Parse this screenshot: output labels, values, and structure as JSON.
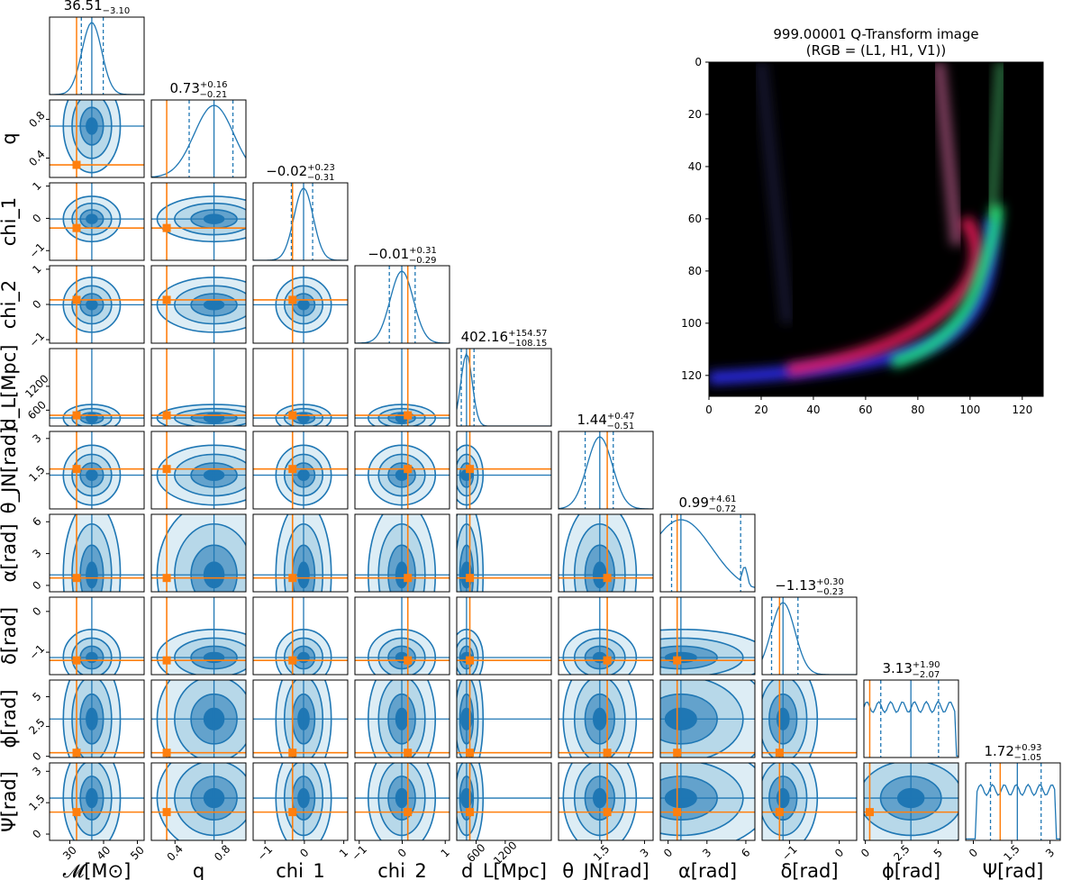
{
  "chart_data": [
    {
      "type": "corner",
      "colors": {
        "posterior": "#1f77b4",
        "injection": "#ff7f0e",
        "fill": "#9ecae1"
      },
      "parameters": [
        {
          "name": "mass",
          "label": "𝓜[M⊙]",
          "range": [
            24,
            52
          ],
          "median": 36.51,
          "plus": null,
          "minus": "3.10",
          "q_lo": 33.41,
          "q_hi": 39.9,
          "injected": 32.0,
          "ticks": [
            30,
            40,
            50
          ],
          "sd": 3.4,
          "hist_y_hidden": true,
          "title": "36.51"
        },
        {
          "name": "q",
          "label": "q",
          "range": [
            0.2,
            1.0
          ],
          "median": 0.73,
          "plus": "0.16",
          "minus": "0.21",
          "q_lo": 0.52,
          "q_hi": 0.89,
          "injected": 0.33,
          "ticks": [
            0.4,
            0.8
          ],
          "title": "0.73"
        },
        {
          "name": "chi_1",
          "label": "chi_1",
          "range": [
            -1.3,
            1.1
          ],
          "median": -0.02,
          "plus": "0.23",
          "minus": "0.31",
          "q_lo": -0.33,
          "q_hi": 0.21,
          "injected": -0.3,
          "ticks": [
            -1,
            0,
            1
          ],
          "title": "−0.02"
        },
        {
          "name": "chi_2",
          "label": "chi_2",
          "range": [
            -1.1,
            1.1
          ],
          "median": -0.01,
          "plus": "0.31",
          "minus": "0.29",
          "q_lo": -0.3,
          "q_hi": 0.3,
          "injected": 0.13,
          "ticks": [
            -1,
            0,
            1
          ],
          "title": "−0.01"
        },
        {
          "name": "d_L",
          "label": "d_L[Mpc]",
          "range": [
            200,
            2150
          ],
          "median": 402.16,
          "plus": "154.57",
          "minus": "108.15",
          "q_lo": 294.0,
          "q_hi": 556.7,
          "injected": 470.0,
          "ticks": [
            600,
            1200
          ],
          "title": "402.16"
        },
        {
          "name": "theta_JN",
          "label": "θ_JN[rad]",
          "range": [
            0.0,
            3.3
          ],
          "median": 1.44,
          "plus": "0.47",
          "minus": "0.51",
          "q_lo": 0.93,
          "q_hi": 1.91,
          "injected": 1.7,
          "ticks": [
            1.5,
            3.0
          ],
          "title": "1.44"
        },
        {
          "name": "alpha",
          "label": "α[rad]",
          "range": [
            -0.6,
            6.7
          ],
          "median": 0.99,
          "plus": "4.61",
          "minus": "0.72",
          "q_lo": 0.27,
          "q_hi": 5.6,
          "injected": 0.7,
          "ticks": [
            0,
            3,
            6
          ],
          "title": "0.99"
        },
        {
          "name": "delta",
          "label": "δ[rad]",
          "range": [
            -1.55,
            0.35
          ],
          "median": -1.13,
          "plus": "0.30",
          "minus": "0.23",
          "q_lo": -1.36,
          "q_hi": -0.83,
          "injected": -1.2,
          "ticks": [
            -1,
            0
          ],
          "title": "−1.13"
        },
        {
          "name": "phi",
          "label": "ϕ[rad]",
          "range": [
            -0.1,
            6.4
          ],
          "median": 3.13,
          "plus": "1.90",
          "minus": "2.07",
          "q_lo": 1.06,
          "q_hi": 5.03,
          "injected": 0.3,
          "ticks": [
            0.0,
            2.5,
            5.0
          ],
          "title": "3.13"
        },
        {
          "name": "psi",
          "label": "Ψ[rad]",
          "range": [
            -0.3,
            3.4
          ],
          "median": 1.72,
          "plus": "0.93",
          "minus": "1.05",
          "q_lo": 0.67,
          "q_hi": 2.65,
          "injected": 1.05,
          "ticks": [
            0.0,
            1.5,
            3.0
          ],
          "title": "1.72"
        }
      ]
    },
    {
      "type": "heatmap",
      "title": "999.00001 Q-Transform image",
      "subtitle": "(RGB = (L1, H1, V1))",
      "xlim": [
        0,
        128
      ],
      "ylim": [
        128,
        0
      ],
      "xticks": [
        0,
        20,
        40,
        60,
        80,
        100,
        120
      ],
      "yticks": [
        0,
        20,
        40,
        60,
        80,
        100,
        120
      ]
    }
  ]
}
